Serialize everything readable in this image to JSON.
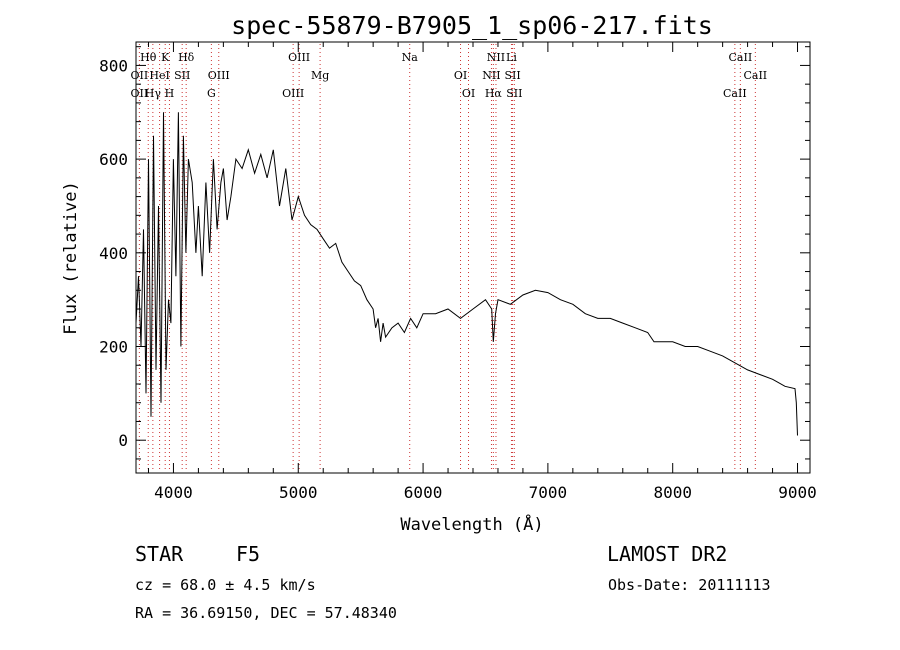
{
  "chart_data": {
    "type": "line",
    "title": "spec-55879-B7905_1_sp06-217.fits",
    "xlabel": "Wavelength (Å)",
    "ylabel": "Flux (relative)",
    "xlim": [
      3700,
      9100
    ],
    "ylim": [
      -70,
      850
    ],
    "xticks": [
      4000,
      5000,
      6000,
      7000,
      8000,
      9000
    ],
    "yticks": [
      0,
      200,
      400,
      600,
      800
    ],
    "grid": false,
    "line_color": "#000000",
    "marker_line_color": "#cc3333",
    "series": [
      {
        "x": [
          3700,
          3720,
          3740,
          3760,
          3780,
          3800,
          3820,
          3840,
          3860,
          3880,
          3900,
          3920,
          3940,
          3960,
          3980,
          4000,
          4020,
          4040,
          4060,
          4080,
          4100,
          4120,
          4150,
          4180,
          4200,
          4230,
          4260,
          4290,
          4320,
          4350,
          4380,
          4400,
          4430,
          4460,
          4500,
          4550,
          4600,
          4650,
          4700,
          4750,
          4800,
          4850,
          4900,
          4950,
          5000,
          5050,
          5100,
          5150,
          5200,
          5250,
          5300,
          5350,
          5400,
          5450,
          5500,
          5550,
          5600,
          5620,
          5640,
          5660,
          5680,
          5700,
          5750,
          5800,
          5850,
          5900,
          5950,
          6000,
          6100,
          6200,
          6300,
          6400,
          6500,
          6550,
          6563,
          6580,
          6600,
          6700,
          6800,
          6900,
          7000,
          7100,
          7200,
          7300,
          7400,
          7500,
          7600,
          7700,
          7800,
          7850,
          7900,
          8000,
          8100,
          8200,
          8300,
          8400,
          8500,
          8600,
          8700,
          8800,
          8900,
          8980,
          8990,
          9000
        ],
        "y": [
          250,
          350,
          200,
          450,
          100,
          600,
          50,
          650,
          150,
          500,
          80,
          700,
          150,
          300,
          250,
          600,
          350,
          700,
          200,
          650,
          400,
          600,
          550,
          400,
          500,
          350,
          550,
          400,
          600,
          450,
          550,
          580,
          470,
          520,
          600,
          580,
          620,
          570,
          610,
          560,
          620,
          500,
          580,
          470,
          520,
          480,
          460,
          450,
          430,
          410,
          420,
          380,
          360,
          340,
          330,
          300,
          280,
          240,
          260,
          210,
          250,
          220,
          240,
          250,
          230,
          260,
          240,
          270,
          270,
          280,
          260,
          280,
          300,
          280,
          210,
          270,
          300,
          290,
          310,
          320,
          315,
          300,
          290,
          270,
          260,
          260,
          250,
          240,
          230,
          210,
          210,
          210,
          200,
          200,
          190,
          180,
          165,
          150,
          140,
          130,
          115,
          110,
          80,
          10
        ]
      }
    ],
    "line_markers": [
      {
        "name": "Hθ",
        "wavelength": 3798,
        "row": 0
      },
      {
        "name": "K",
        "wavelength": 3934,
        "row": 0
      },
      {
        "name": "Hδ",
        "wavelength": 4102,
        "row": 0
      },
      {
        "name": "OIII",
        "wavelength": 5007,
        "row": 0
      },
      {
        "name": "Na",
        "wavelength": 5893,
        "row": 0
      },
      {
        "name": "NII",
        "wavelength": 6584,
        "row": 0
      },
      {
        "name": "Li",
        "wavelength": 6708,
        "row": 0
      },
      {
        "name": "CaII",
        "wavelength": 8542,
        "row": 0
      },
      {
        "name": "OII",
        "wavelength": 3727,
        "row": 1
      },
      {
        "name": "HeI",
        "wavelength": 3889,
        "row": 1
      },
      {
        "name": "SII",
        "wavelength": 4070,
        "row": 1
      },
      {
        "name": "OIII",
        "wavelength": 4363,
        "row": 1
      },
      {
        "name": "Mg",
        "wavelength": 5175,
        "row": 1
      },
      {
        "name": "OI",
        "wavelength": 6300,
        "row": 1
      },
      {
        "name": "NII",
        "wavelength": 6548,
        "row": 1
      },
      {
        "name": "SII",
        "wavelength": 6717,
        "row": 1
      },
      {
        "name": "CaII",
        "wavelength": 8662,
        "row": 1
      },
      {
        "name": "OII",
        "wavelength": 3727,
        "row": 2
      },
      {
        "name": "Hγ",
        "wavelength": 3835,
        "row": 2
      },
      {
        "name": "H",
        "wavelength": 3968,
        "row": 2
      },
      {
        "name": "G",
        "wavelength": 4304,
        "row": 2
      },
      {
        "name": "OIII",
        "wavelength": 4959,
        "row": 2
      },
      {
        "name": "OI",
        "wavelength": 6364,
        "row": 2
      },
      {
        "name": "Hα",
        "wavelength": 6563,
        "row": 2
      },
      {
        "name": "SII",
        "wavelength": 6731,
        "row": 2
      },
      {
        "name": "CaII",
        "wavelength": 8498,
        "row": 2
      }
    ]
  },
  "info": {
    "object_class": "STAR",
    "subclass": "F5",
    "survey": "LAMOST DR2",
    "cz": "cz = 68.0 ± 4.5 km/s",
    "obs_date": "Obs-Date: 20111113",
    "coords": "RA =  36.69150, DEC =  57.48340"
  }
}
